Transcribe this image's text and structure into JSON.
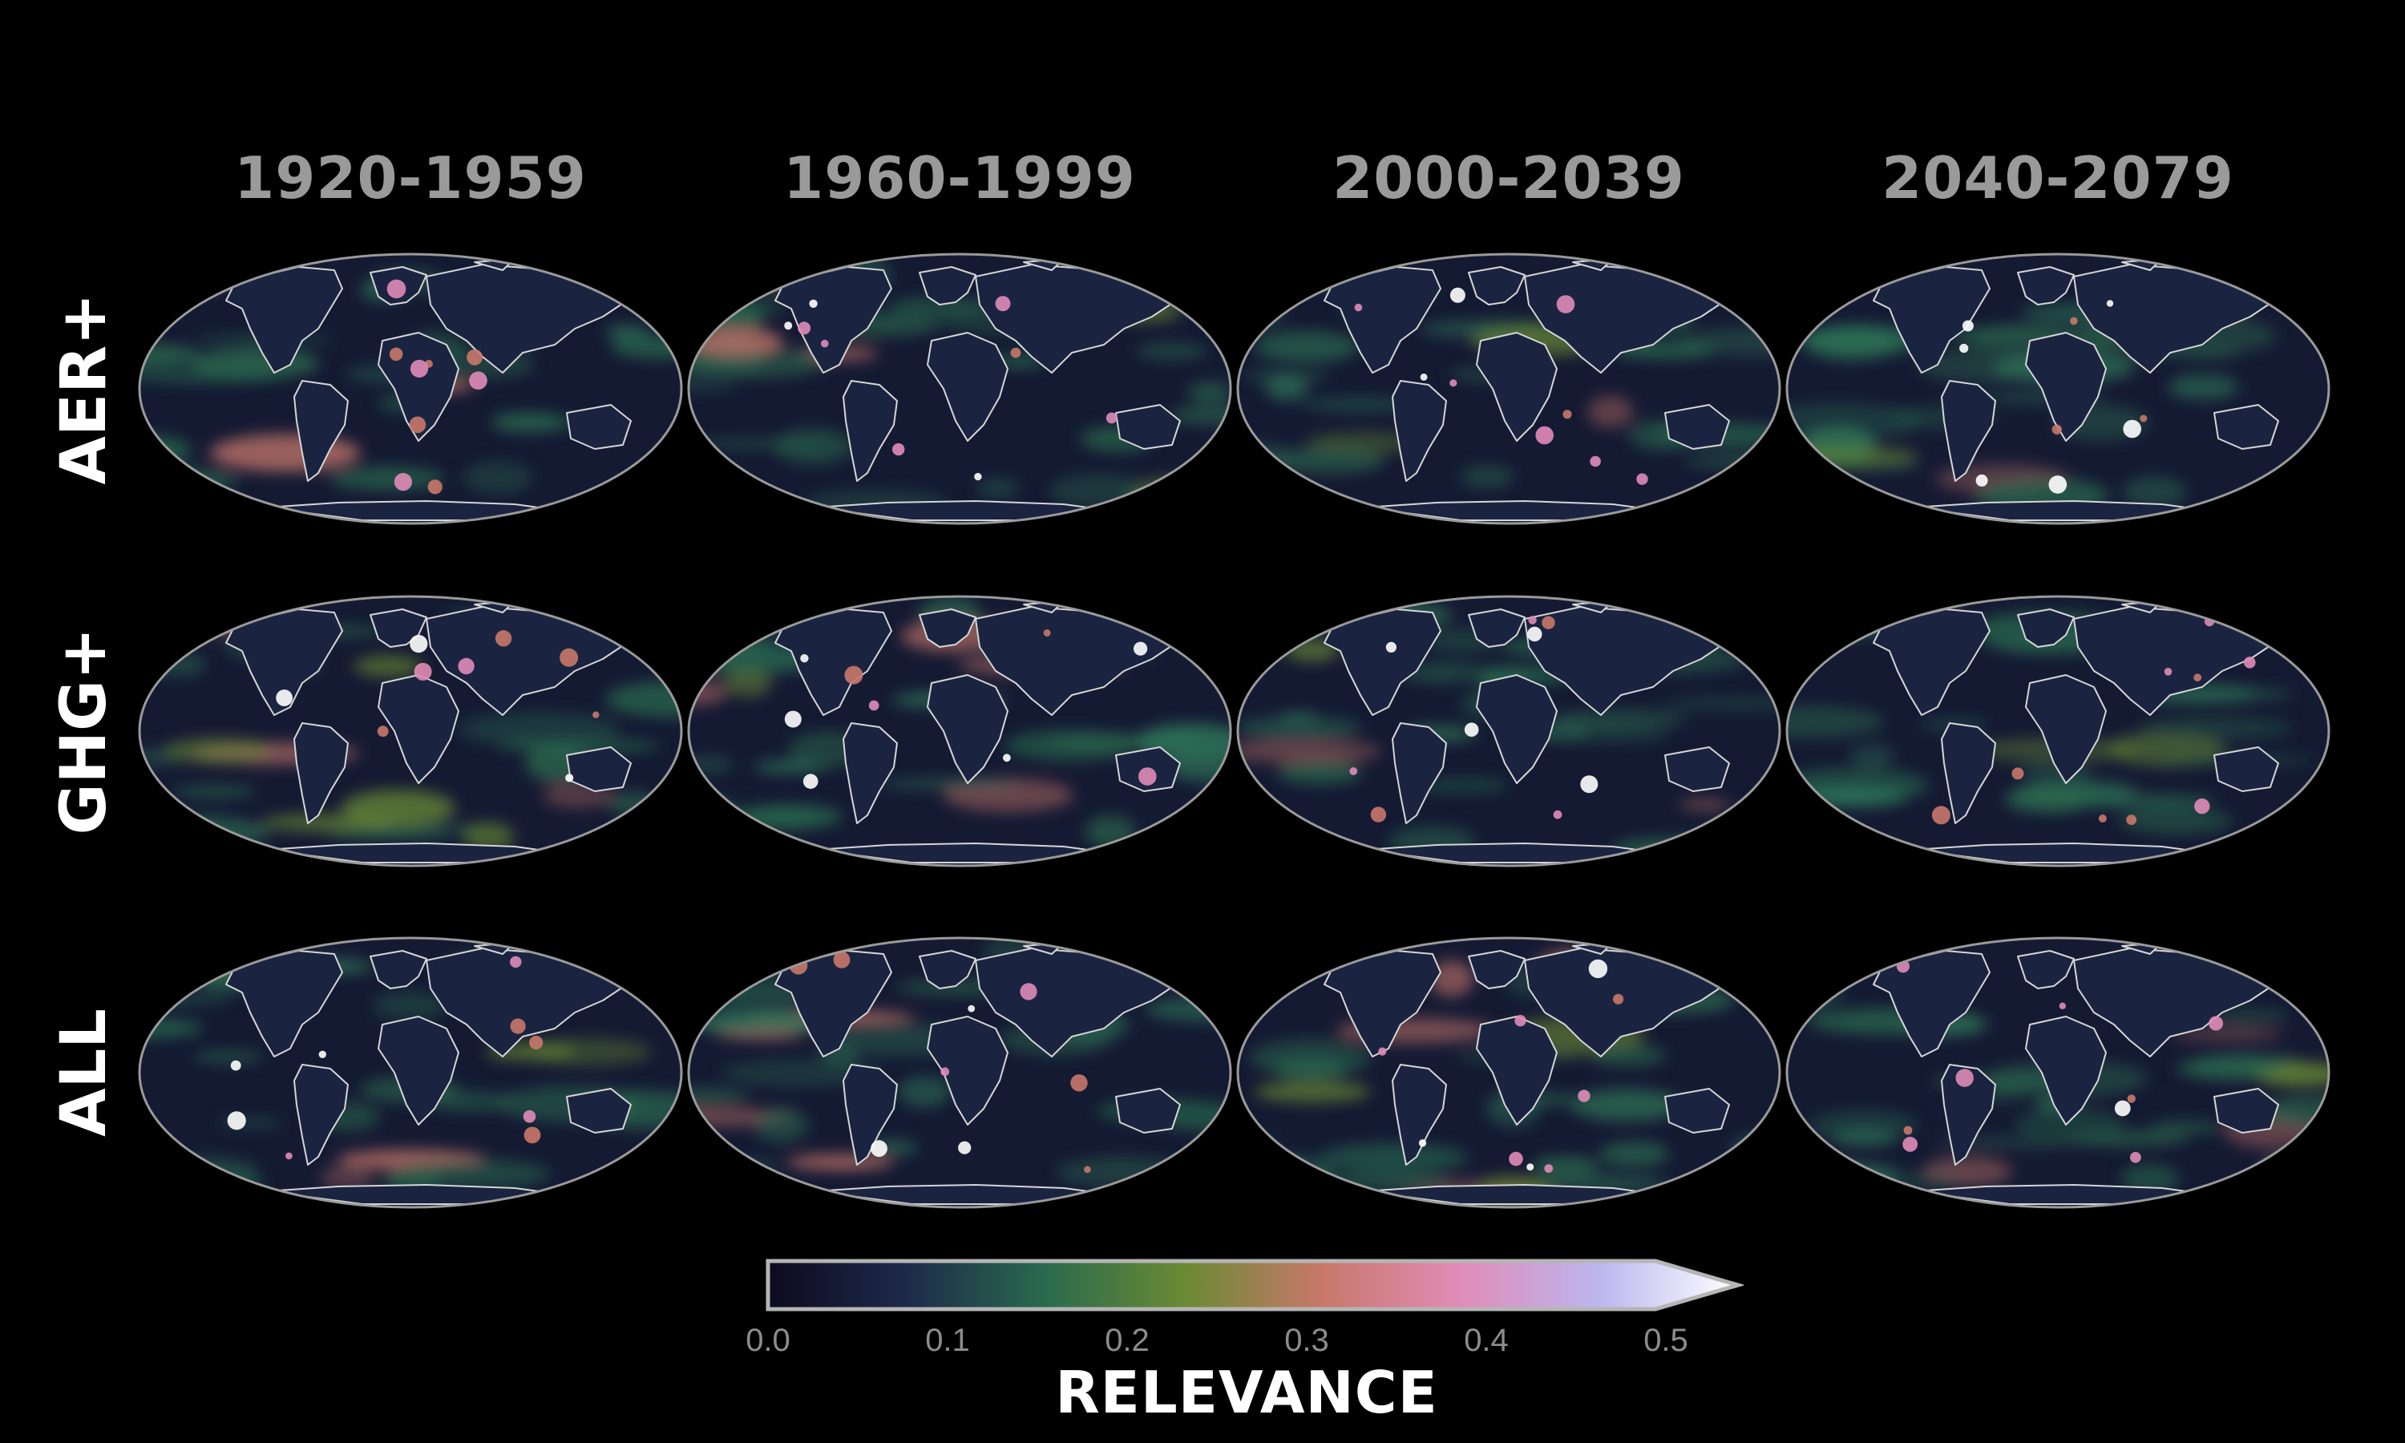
{
  "columns": [
    "1920-1959",
    "1960-1999",
    "2000-2039",
    "2040-2079"
  ],
  "rows": [
    "AER+",
    "GHG+",
    "ALL"
  ],
  "colorbar": {
    "label": "RELEVANCE",
    "ticks": [
      "0.0",
      "0.1",
      "0.2",
      "0.3",
      "0.4",
      "0.5"
    ],
    "min": 0.0,
    "max": 0.5,
    "extend": "max",
    "colors": [
      "#0d0a1e",
      "#1d2a4a",
      "#2a6a4e",
      "#6a8a34",
      "#c9786a",
      "#e08cb8",
      "#bcb6ee",
      "#ffffff"
    ]
  },
  "colors": {
    "background": "#000000",
    "ocean_base": "#151a33",
    "coastline": "#d6d6d6",
    "map_border": "#9a9a9a"
  }
}
